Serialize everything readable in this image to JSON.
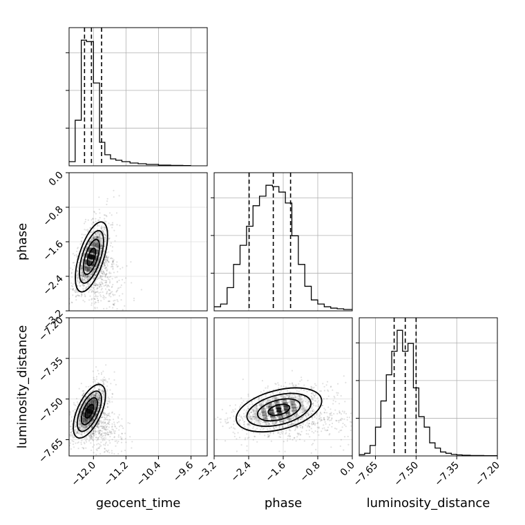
{
  "chart_data": {
    "type": "corner",
    "parameters": [
      "geocent_time",
      "phase",
      "luminosity_distance"
    ],
    "ranges": {
      "geocent_time": [
        -12.6,
        -9.2
      ],
      "phase": [
        -3.2,
        0.0
      ],
      "luminosity_distance": [
        -7.71,
        -7.2
      ]
    },
    "ticks": {
      "geocent_time": [
        -12.0,
        -11.2,
        -10.4,
        -9.6
      ],
      "phase": [
        -3.2,
        -2.4,
        -1.6,
        -0.8,
        0.0
      ],
      "luminosity_distance": [
        -7.65,
        -7.5,
        -7.35,
        -7.2
      ]
    },
    "tick_labels": {
      "geocent_time": [
        "−12.0",
        "−11.2",
        "−10.4",
        "−9.6"
      ],
      "phase": [
        "−3.2",
        "−2.4",
        "−1.6",
        "−0.8",
        "0.0"
      ],
      "luminosity_distance": [
        "−7.65",
        "−7.50",
        "−7.35",
        "−7.20"
      ]
    },
    "quantiles": {
      "geocent_time": [
        -12.22,
        -12.05,
        -11.8
      ],
      "phase": [
        -2.39,
        -1.83,
        -1.43
      ],
      "luminosity_distance": [
        -7.581,
        -7.54,
        -7.5
      ]
    },
    "histograms": {
      "geocent_time": {
        "edges": [
          -12.6,
          -12.45,
          -12.3,
          -12.17,
          -12.0,
          -11.85,
          -11.72,
          -11.58,
          -11.45,
          -11.3,
          -11.1,
          -10.9,
          -10.7,
          -10.4,
          -10.1,
          -9.8,
          -9.6
        ],
        "counts": [
          0.03,
          0.33,
          0.91,
          0.9,
          0.6,
          0.17,
          0.08,
          0.05,
          0.04,
          0.03,
          0.02,
          0.015,
          0.01,
          0.005,
          0.003,
          0.002
        ]
      },
      "phase": {
        "edges": [
          -3.2,
          -3.05,
          -2.9,
          -2.75,
          -2.6,
          -2.45,
          -2.3,
          -2.15,
          -2.0,
          -1.85,
          -1.7,
          -1.55,
          -1.4,
          -1.25,
          -1.1,
          -0.95,
          -0.8,
          -0.65,
          -0.5,
          -0.35,
          -0.2,
          0.0
        ],
        "counts": [
          0.03,
          0.05,
          0.17,
          0.34,
          0.48,
          0.62,
          0.77,
          0.84,
          0.92,
          0.91,
          0.87,
          0.79,
          0.55,
          0.34,
          0.18,
          0.08,
          0.05,
          0.03,
          0.02,
          0.015,
          0.01
        ]
      },
      "luminosity_distance": {
        "edges": [
          -7.71,
          -7.69,
          -7.67,
          -7.65,
          -7.63,
          -7.61,
          -7.59,
          -7.57,
          -7.55,
          -7.53,
          -7.51,
          -7.49,
          -7.47,
          -7.45,
          -7.43,
          -7.41,
          -7.39,
          -7.37,
          -7.35,
          -7.33,
          -7.3,
          -7.25,
          -7.2
        ],
        "counts": [
          0.01,
          0.02,
          0.08,
          0.22,
          0.42,
          0.62,
          0.8,
          0.96,
          0.8,
          0.86,
          0.52,
          0.3,
          0.22,
          0.1,
          0.06,
          0.03,
          0.02,
          0.012,
          0.008,
          0.005,
          0.003,
          0.002
        ]
      }
    },
    "scatter_2d": [
      {
        "x": "geocent_time",
        "y": "phase",
        "center": [
          -12.05,
          -1.95
        ],
        "sd": [
          0.22,
          0.45
        ],
        "corr": 0.6,
        "contour_levels": [
          0.5,
          1.0,
          1.5,
          2.0
        ]
      },
      {
        "x": "geocent_time",
        "y": "luminosity_distance",
        "center": [
          -12.1,
          -7.545
        ],
        "sd": [
          0.22,
          0.055
        ],
        "corr": 0.6,
        "contour_levels": [
          0.5,
          1.0,
          1.5,
          2.0
        ]
      },
      {
        "x": "phase",
        "y": "luminosity_distance",
        "center": [
          -1.7,
          -7.54
        ],
        "sd": [
          0.55,
          0.045
        ],
        "corr": 0.4,
        "contour_levels": [
          0.5,
          1.0,
          1.5,
          2.0
        ]
      }
    ],
    "grid": true,
    "colors": {
      "line": "#000000",
      "grid": "#b0b0b0",
      "points": "#000000"
    }
  }
}
